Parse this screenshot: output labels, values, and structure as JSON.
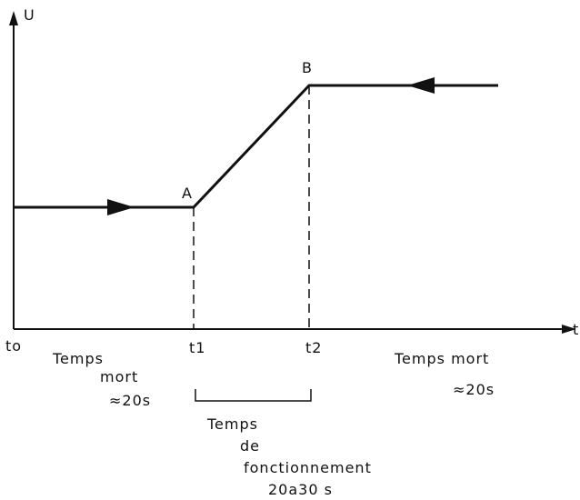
{
  "axes": {
    "y_label": "U",
    "x_label": "t"
  },
  "points": {
    "a": "A",
    "b": "B"
  },
  "times": {
    "t0": "to",
    "t1": "t1",
    "t2": "t2"
  },
  "annotations": {
    "left": [
      "Temps",
      "mort",
      "≈20s"
    ],
    "right": [
      "Temps mort",
      "≈20s"
    ],
    "middle": [
      "Temps",
      "de",
      "fonctionnement",
      "20a30 s"
    ]
  }
}
